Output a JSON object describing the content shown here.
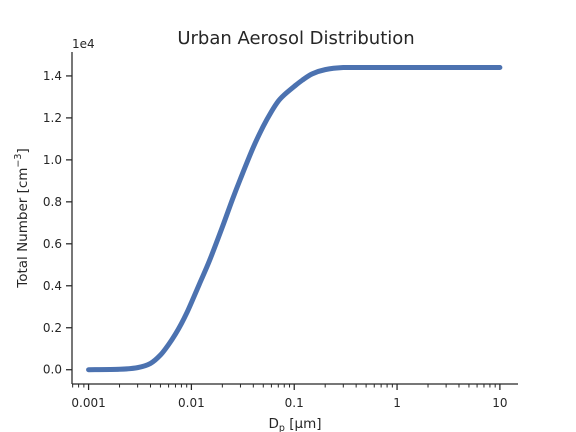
{
  "chart_data": {
    "type": "line",
    "title": "Urban Aerosol Distribution",
    "xlabel_main": "D",
    "xlabel_sub": "p",
    "xlabel_rest": " [μm]",
    "ylabel_main": "Total Number [cm",
    "ylabel_sup": "−3",
    "ylabel_end": "]",
    "offset_text": "1e4",
    "xscale": "log",
    "xlim": [
      0.00069,
      15
    ],
    "ylim": [
      -0.068,
      1.514
    ],
    "x_ticks": [
      {
        "value": 0.001,
        "label": "0.001"
      },
      {
        "value": 0.01,
        "label": "0.01"
      },
      {
        "value": 0.1,
        "label": "0.1"
      },
      {
        "value": 1,
        "label": "1"
      },
      {
        "value": 10,
        "label": "10"
      }
    ],
    "y_ticks": [
      {
        "value": 0.0,
        "label": "0.0"
      },
      {
        "value": 0.2,
        "label": "0.2"
      },
      {
        "value": 0.4,
        "label": "0.4"
      },
      {
        "value": 0.6,
        "label": "0.6"
      },
      {
        "value": 0.8,
        "label": "0.8"
      },
      {
        "value": 1.0,
        "label": "1.0"
      },
      {
        "value": 1.2,
        "label": "1.2"
      },
      {
        "value": 1.4,
        "label": "1.4"
      }
    ],
    "grid": false,
    "series": [
      {
        "color": "#4c72b0",
        "x": [
          0.001,
          0.002,
          0.003,
          0.004,
          0.005,
          0.006,
          0.007,
          0.008,
          0.009,
          0.01,
          0.012,
          0.015,
          0.02,
          0.025,
          0.03,
          0.04,
          0.05,
          0.06,
          0.07,
          0.08,
          0.1,
          0.12,
          0.15,
          0.2,
          0.3,
          0.5,
          1,
          2,
          5,
          10
        ],
        "y": [
          0.0,
          0.002,
          0.01,
          0.03,
          0.07,
          0.12,
          0.17,
          0.22,
          0.27,
          0.32,
          0.41,
          0.52,
          0.68,
          0.81,
          0.91,
          1.06,
          1.16,
          1.23,
          1.28,
          1.31,
          1.35,
          1.38,
          1.41,
          1.43,
          1.44,
          1.44,
          1.44,
          1.44,
          1.44,
          1.44
        ]
      }
    ]
  }
}
